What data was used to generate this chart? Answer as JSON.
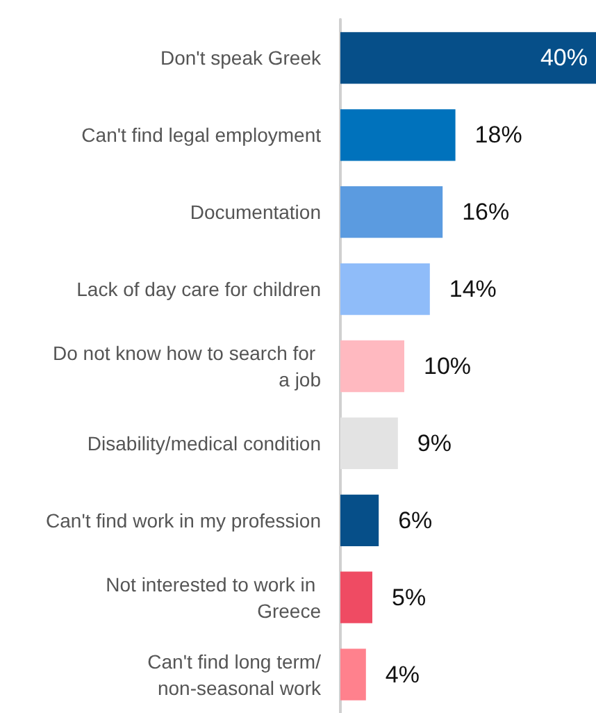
{
  "chart_data": {
    "type": "bar",
    "orientation": "horizontal",
    "categories": [
      "Don't speak Greek",
      "Can't find legal employment",
      "Documentation",
      "Lack of day care for children",
      "Do not know how to search for a job",
      "Disability/medical condition",
      "Can't find work in my profession",
      "Not interested to work in Greece",
      "Can't find long term/non-seasonal work"
    ],
    "values": [
      40,
      18,
      16,
      14,
      10,
      9,
      6,
      5,
      4
    ],
    "value_labels": [
      "40%",
      "18%",
      "16%",
      "14%",
      "10%",
      "9%",
      "6%",
      "5%",
      "4%"
    ],
    "colors": [
      "#064f89",
      "#0072bc",
      "#5b9be0",
      "#8fbcf9",
      "#ffb9c0",
      "#e3e3e3",
      "#064f89",
      "#ef4b63",
      "#ff818d"
    ]
  }
}
